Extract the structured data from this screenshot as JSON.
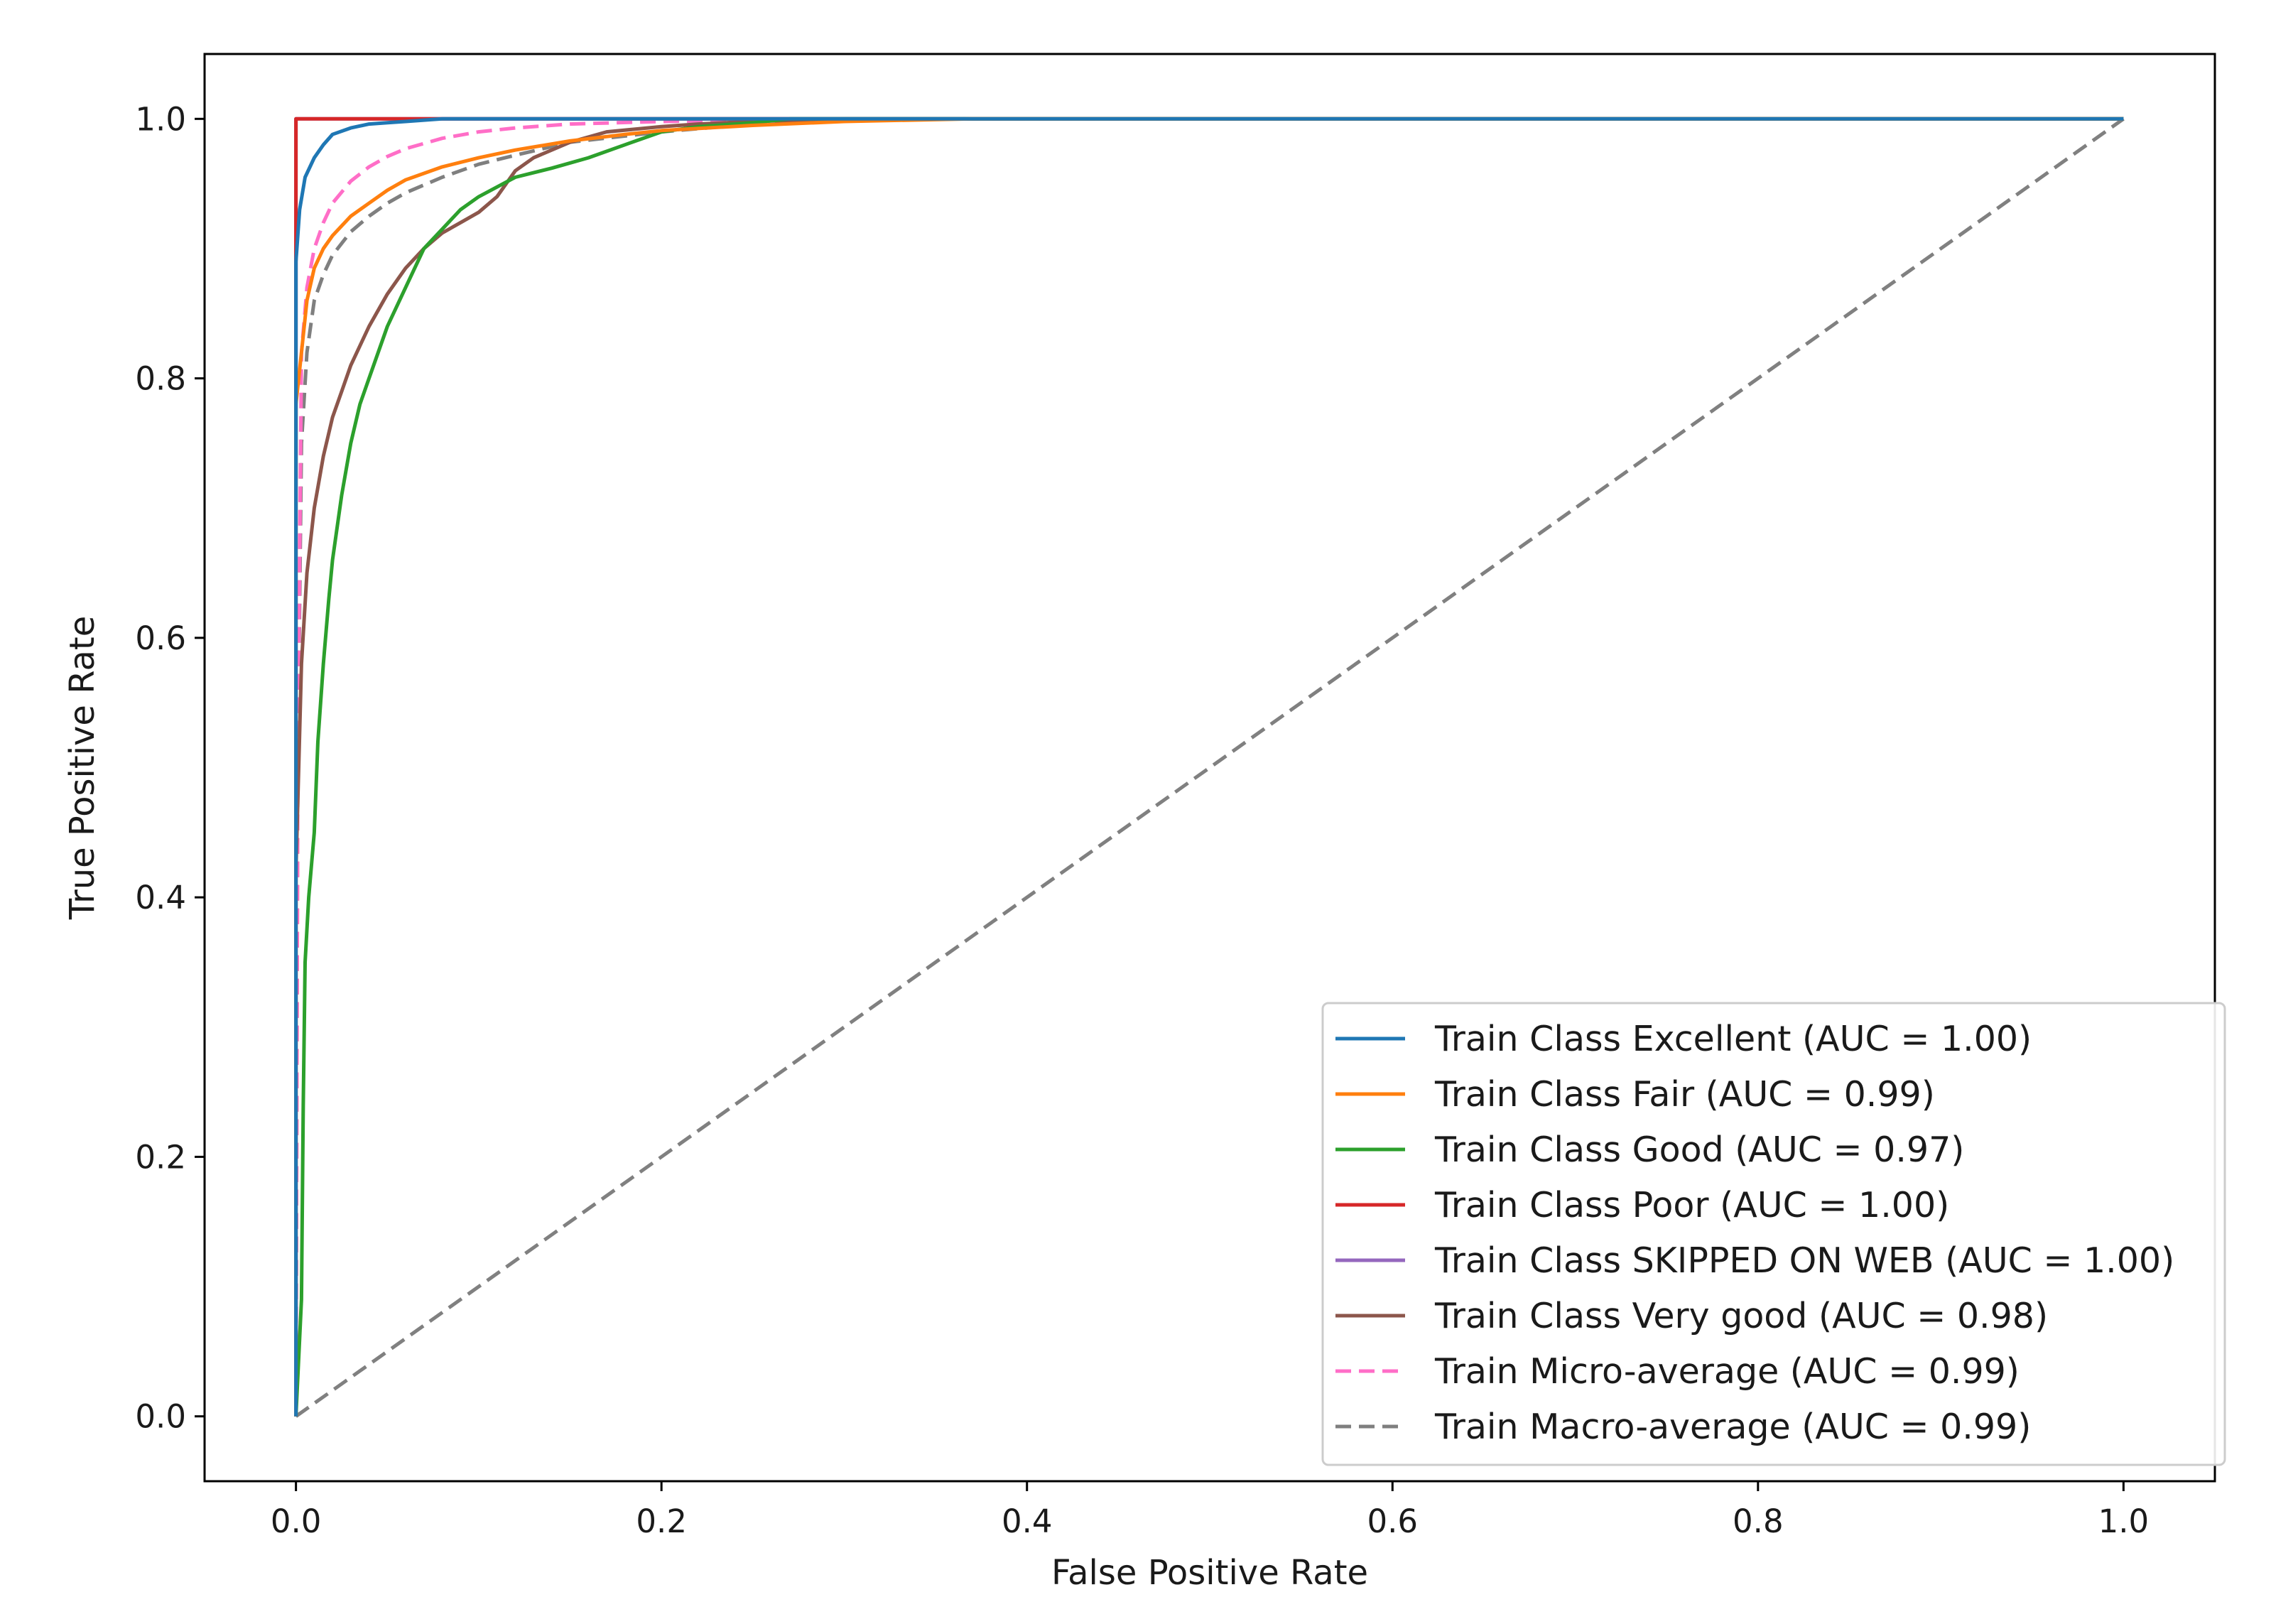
{
  "chart_data": {
    "type": "line",
    "title": "",
    "xlabel": "False Positive Rate",
    "ylabel": "True Positive Rate",
    "xlim": [
      -0.05,
      1.05
    ],
    "ylim": [
      -0.05,
      1.05
    ],
    "xticks": [
      0.0,
      0.2,
      0.4,
      0.6,
      0.8,
      1.0
    ],
    "yticks": [
      0.0,
      0.2,
      0.4,
      0.6,
      0.8,
      1.0
    ],
    "xtick_labels": [
      "0.0",
      "0.2",
      "0.4",
      "0.6",
      "0.8",
      "1.0"
    ],
    "ytick_labels": [
      "0.0",
      "0.2",
      "0.4",
      "0.6",
      "0.8",
      "1.0"
    ],
    "grid": false,
    "legend_position": "lower-right",
    "series": [
      {
        "name": "Train Class Excellent (AUC = 1.00)",
        "color": "#1f77b4",
        "style": "solid",
        "x": [
          0,
          0,
          0.002,
          0.005,
          0.01,
          0.015,
          0.02,
          0.03,
          0.04,
          0.05,
          0.06,
          0.07,
          0.08,
          1.0
        ],
        "y": [
          0,
          0.89,
          0.93,
          0.955,
          0.97,
          0.98,
          0.988,
          0.993,
          0.996,
          0.997,
          0.998,
          0.999,
          1.0,
          1.0
        ]
      },
      {
        "name": "Train Class Fair (AUC = 0.99)",
        "color": "#ff7f0e",
        "style": "solid",
        "x": [
          0,
          0,
          0.003,
          0.006,
          0.01,
          0.015,
          0.02,
          0.03,
          0.04,
          0.05,
          0.06,
          0.08,
          0.1,
          0.12,
          0.15,
          0.18,
          0.2,
          0.25,
          0.3,
          0.37,
          1.0
        ],
        "y": [
          0,
          0.78,
          0.82,
          0.86,
          0.885,
          0.9,
          0.91,
          0.925,
          0.935,
          0.945,
          0.953,
          0.963,
          0.97,
          0.976,
          0.983,
          0.988,
          0.991,
          0.995,
          0.998,
          1.0,
          1.0
        ]
      },
      {
        "name": "Train Class Good (AUC = 0.97)",
        "color": "#2ca02c",
        "style": "solid",
        "x": [
          0,
          0.003,
          0.004,
          0.005,
          0.007,
          0.01,
          0.012,
          0.015,
          0.018,
          0.02,
          0.025,
          0.03,
          0.035,
          0.04,
          0.05,
          0.06,
          0.07,
          0.08,
          0.09,
          0.1,
          0.12,
          0.14,
          0.16,
          0.18,
          0.2,
          0.22,
          0.25,
          0.27,
          1.0
        ],
        "y": [
          0,
          0.09,
          0.24,
          0.35,
          0.4,
          0.45,
          0.52,
          0.58,
          0.63,
          0.66,
          0.71,
          0.75,
          0.78,
          0.8,
          0.84,
          0.87,
          0.9,
          0.915,
          0.93,
          0.94,
          0.955,
          0.962,
          0.97,
          0.98,
          0.99,
          0.994,
          0.997,
          1.0,
          1.0
        ]
      },
      {
        "name": "Train Class Poor (AUC = 1.00)",
        "color": "#d62728",
        "style": "solid",
        "x": [
          0,
          0,
          0.001,
          1.0
        ],
        "y": [
          0,
          1.0,
          1.0,
          1.0
        ]
      },
      {
        "name": "Train Class SKIPPED ON WEB (AUC = 1.00)",
        "color": "#9467bd",
        "style": "solid",
        "x": [
          0,
          0,
          1.0
        ],
        "y": [
          0,
          1.0,
          1.0
        ]
      },
      {
        "name": "Train Class Very good (AUC = 0.98)",
        "color": "#8c564b",
        "style": "solid",
        "x": [
          0,
          0,
          0.003,
          0.006,
          0.01,
          0.015,
          0.02,
          0.025,
          0.03,
          0.04,
          0.05,
          0.06,
          0.07,
          0.08,
          0.09,
          0.1,
          0.11,
          0.12,
          0.13,
          0.15,
          0.17,
          0.2,
          0.22,
          0.25,
          0.3,
          1.0
        ],
        "y": [
          0,
          0.42,
          0.58,
          0.65,
          0.7,
          0.74,
          0.77,
          0.79,
          0.81,
          0.84,
          0.865,
          0.885,
          0.9,
          0.912,
          0.92,
          0.928,
          0.94,
          0.96,
          0.97,
          0.982,
          0.99,
          0.994,
          0.996,
          0.998,
          1.0,
          1.0
        ]
      },
      {
        "name": "Train Micro-average (AUC = 0.99)",
        "color": "#ff6ec7",
        "style": "dashed",
        "x": [
          0,
          0.001,
          0.003,
          0.006,
          0.01,
          0.015,
          0.02,
          0.03,
          0.04,
          0.05,
          0.06,
          0.08,
          0.1,
          0.12,
          0.15,
          0.2,
          0.3,
          1.0
        ],
        "y": [
          0,
          0.5,
          0.82,
          0.87,
          0.9,
          0.92,
          0.935,
          0.952,
          0.963,
          0.971,
          0.977,
          0.985,
          0.99,
          0.993,
          0.996,
          0.998,
          1.0,
          1.0
        ]
      },
      {
        "name": "Train Macro-average (AUC = 0.99)",
        "color": "#7f7f7f",
        "style": "dashed",
        "x": [
          0,
          0.001,
          0.003,
          0.006,
          0.01,
          0.015,
          0.02,
          0.03,
          0.04,
          0.05,
          0.06,
          0.08,
          0.1,
          0.12,
          0.15,
          0.2,
          0.25,
          0.3,
          1.0
        ],
        "y": [
          0,
          0.5,
          0.75,
          0.82,
          0.86,
          0.88,
          0.895,
          0.913,
          0.925,
          0.935,
          0.943,
          0.955,
          0.965,
          0.972,
          0.982,
          0.99,
          0.996,
          1.0,
          1.0
        ]
      },
      {
        "name": "",
        "color": "#808080",
        "style": "dashed",
        "x": [
          0,
          1.0
        ],
        "y": [
          0,
          1.0
        ]
      }
    ]
  }
}
